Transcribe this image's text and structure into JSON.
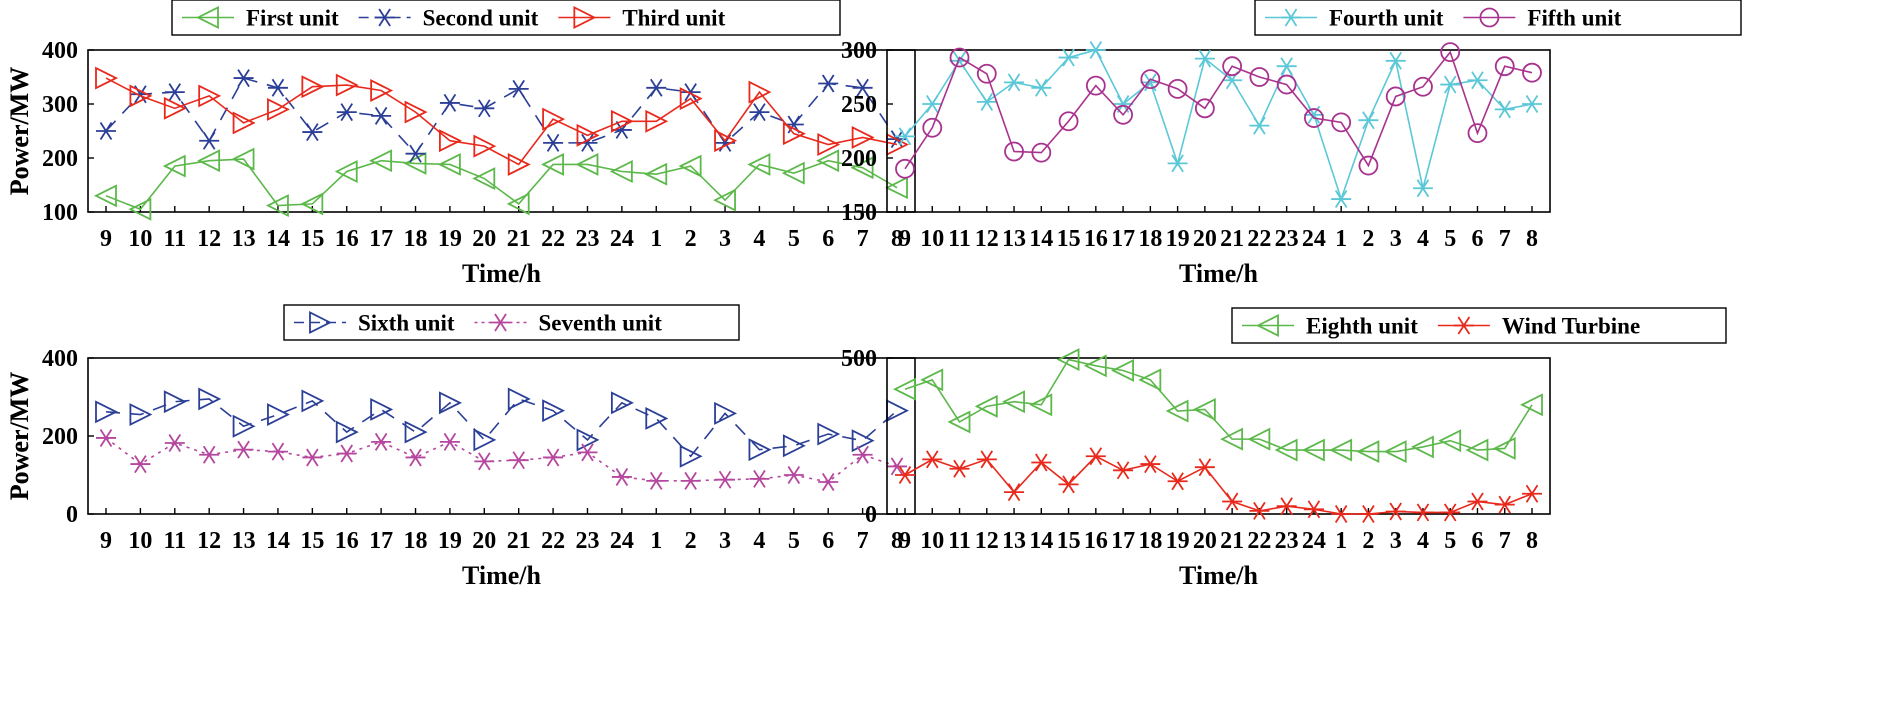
{
  "chart_data": [
    {
      "type": "line",
      "xlabel": "Time/h",
      "ylabel": "Power/MW",
      "ylim": [
        100,
        400
      ],
      "yticks": [
        100,
        200,
        300,
        400
      ],
      "categories": [
        "9",
        "10",
        "11",
        "12",
        "13",
        "14",
        "15",
        "16",
        "17",
        "18",
        "19",
        "20",
        "21",
        "22",
        "23",
        "24",
        "1",
        "2",
        "3",
        "4",
        "5",
        "6",
        "7",
        "8"
      ],
      "grid": false,
      "legend_position": "top",
      "series": [
        {
          "name": "First unit",
          "color": "#5cb84a",
          "marker": "triangle-left",
          "dash": "solid",
          "values": [
            130,
            105,
            185,
            195,
            198,
            112,
            115,
            175,
            195,
            190,
            188,
            162,
            115,
            188,
            188,
            175,
            170,
            185,
            122,
            188,
            172,
            195,
            182,
            145
          ]
        },
        {
          "name": "Second unit",
          "color": "#2b3f97",
          "marker": "asterisk",
          "dash": "dashed",
          "values": [
            250,
            318,
            322,
            232,
            348,
            330,
            248,
            285,
            278,
            208,
            302,
            292,
            328,
            228,
            228,
            252,
            330,
            322,
            228,
            285,
            262,
            338,
            330,
            235
          ]
        },
        {
          "name": "Third unit",
          "color": "#e8291c",
          "marker": "triangle-right",
          "dash": "solid",
          "values": [
            348,
            315,
            292,
            315,
            265,
            290,
            332,
            335,
            325,
            285,
            232,
            222,
            188,
            272,
            242,
            268,
            268,
            310,
            232,
            322,
            245,
            225,
            238,
            225
          ]
        }
      ]
    },
    {
      "type": "line",
      "xlabel": "Time/h",
      "ylabel": "Power/MW",
      "ylim": [
        150,
        300
      ],
      "yticks": [
        150,
        200,
        250,
        300
      ],
      "categories": [
        "9",
        "10",
        "11",
        "12",
        "13",
        "14",
        "15",
        "16",
        "17",
        "18",
        "19",
        "20",
        "21",
        "22",
        "23",
        "24",
        "1",
        "2",
        "3",
        "4",
        "5",
        "6",
        "7",
        "8"
      ],
      "grid": false,
      "legend_position": "top",
      "series": [
        {
          "name": "Fourth unit",
          "color": "#5bc8d8",
          "marker": "asterisk",
          "dash": "solid",
          "values": [
            220,
            250,
            290,
            252,
            270,
            265,
            293,
            300,
            250,
            270,
            195,
            292,
            272,
            230,
            285,
            240,
            162,
            235,
            290,
            172,
            268,
            272,
            245,
            250
          ]
        },
        {
          "name": "Fifth unit",
          "color": "#a8328e",
          "marker": "circle",
          "dash": "solid",
          "values": [
            190,
            228,
            293,
            278,
            206,
            205,
            234,
            267,
            240,
            273,
            264,
            246,
            285,
            275,
            268,
            237,
            233,
            193,
            257,
            266,
            298,
            223,
            285,
            279
          ]
        }
      ]
    },
    {
      "type": "line",
      "xlabel": "Time/h",
      "ylabel": "Power/MW",
      "ylim": [
        0,
        400
      ],
      "yticks": [
        0,
        200,
        400
      ],
      "categories": [
        "9",
        "10",
        "11",
        "12",
        "13",
        "14",
        "15",
        "16",
        "17",
        "18",
        "19",
        "20",
        "21",
        "22",
        "23",
        "24",
        "1",
        "2",
        "3",
        "4",
        "5",
        "6",
        "7",
        "8"
      ],
      "grid": false,
      "legend_position": "top",
      "series": [
        {
          "name": "Sixth unit",
          "color": "#2b3f97",
          "marker": "triangle-right",
          "dash": "dashed",
          "values": [
            262,
            255,
            288,
            295,
            225,
            255,
            290,
            210,
            268,
            210,
            285,
            190,
            295,
            265,
            190,
            285,
            245,
            148,
            258,
            165,
            175,
            205,
            188,
            265
          ]
        },
        {
          "name": "Seventh unit",
          "color": "#b5479e",
          "marker": "asterisk",
          "dash": "dotted",
          "values": [
            195,
            128,
            182,
            152,
            165,
            160,
            145,
            155,
            185,
            145,
            185,
            135,
            138,
            145,
            158,
            95,
            85,
            85,
            88,
            90,
            100,
            82,
            152,
            122
          ]
        }
      ]
    },
    {
      "type": "line",
      "xlabel": "Time/h",
      "ylabel": "Power/MW",
      "ylim": [
        0,
        500
      ],
      "yticks": [
        0,
        500
      ],
      "categories": [
        "9",
        "10",
        "11",
        "12",
        "13",
        "14",
        "15",
        "16",
        "17",
        "18",
        "19",
        "20",
        "21",
        "22",
        "23",
        "24",
        "1",
        "2",
        "3",
        "4",
        "5",
        "6",
        "7",
        "8"
      ],
      "grid": false,
      "legend_position": "top",
      "series": [
        {
          "name": "Eighth unit",
          "color": "#5cb84a",
          "marker": "triangle-left",
          "dash": "solid",
          "values": [
            400,
            430,
            295,
            345,
            360,
            350,
            495,
            475,
            460,
            430,
            330,
            335,
            240,
            240,
            205,
            205,
            205,
            200,
            200,
            215,
            235,
            205,
            210,
            350
          ]
        },
        {
          "name": "Wind Turbine",
          "color": "#e8291c",
          "marker": "asterisk",
          "dash": "solid",
          "values": [
            125,
            175,
            145,
            175,
            70,
            165,
            95,
            185,
            140,
            160,
            105,
            150,
            40,
            10,
            25,
            15,
            0,
            0,
            8,
            5,
            5,
            40,
            30,
            65
          ]
        }
      ]
    }
  ]
}
